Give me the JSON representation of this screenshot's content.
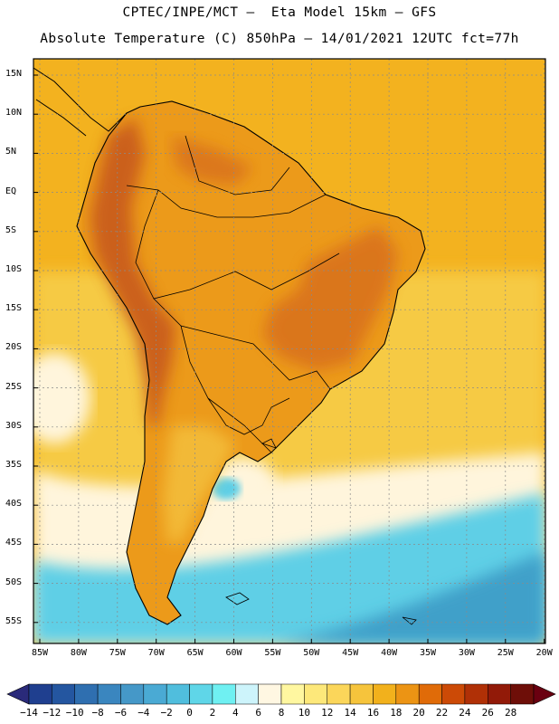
{
  "header": {
    "line1": "CPTEC/INPE/MCT –  Eta Model 15km – GFS",
    "line2": "Absolute Temperature (C) 850hPa – 14/01/2021 12UTC fct=77h"
  },
  "axes": {
    "lat_labels": [
      "15N",
      "10N",
      "5N",
      "EQ",
      "5S",
      "10S",
      "15S",
      "20S",
      "25S",
      "30S",
      "35S",
      "40S",
      "45S",
      "50S",
      "55S"
    ],
    "lon_labels": [
      "85W",
      "80W",
      "75W",
      "70W",
      "65W",
      "60W",
      "55W",
      "50W",
      "45W",
      "40W",
      "35W",
      "30W",
      "25W",
      "20W"
    ]
  },
  "colorbar": {
    "labels": [
      "−14",
      "−12",
      "−10",
      "−8",
      "−6",
      "−4",
      "−2",
      "0",
      "2",
      "4",
      "6",
      "8",
      "10",
      "12",
      "14",
      "16",
      "18",
      "20",
      "22",
      "24",
      "26",
      "28"
    ],
    "colors": [
      "#1f3f8f",
      "#2456a0",
      "#2f6fb0",
      "#3a86bf",
      "#4598c8",
      "#4aaad4",
      "#50bedd",
      "#5fd6e8",
      "#6ff0f2",
      "#cdf4fb",
      "#fff7e2",
      "#fff7a0",
      "#fde87a",
      "#fbd65a",
      "#f6c43c",
      "#f2b11c",
      "#ec9414",
      "#e06b08",
      "#cc4a06",
      "#b03006",
      "#921a08",
      "#6e0e08"
    ],
    "left_arrow_color": "#2a2a7a",
    "right_arrow_color": "#6a0010"
  },
  "map_colors": {
    "ocean_north": "#f3b21f",
    "ocean_mid": "#f7cf4c",
    "land_warm": "#ec9a1a",
    "land_hot": "#d8701a",
    "highlands": "#c85a1c",
    "south_pale": "#fff5dc",
    "south_cyan": "#5ecfe6",
    "south_deep": "#3fa0c9",
    "coast": "#000000",
    "grid": "#8a8a8a"
  }
}
